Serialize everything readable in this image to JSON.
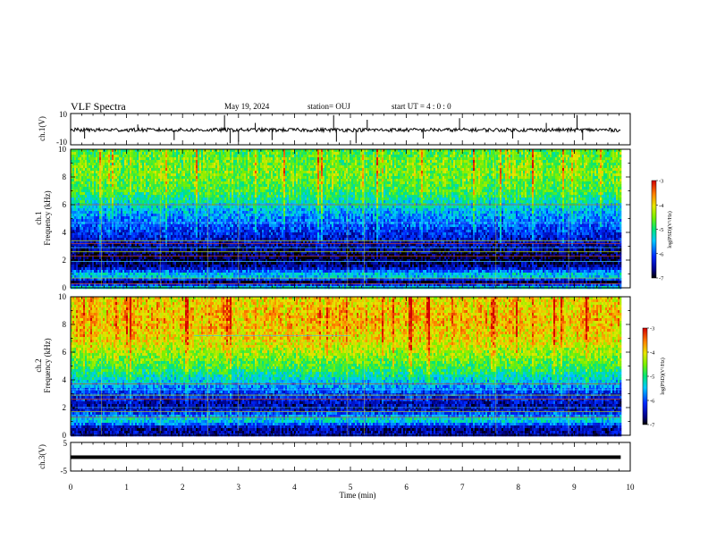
{
  "header": {
    "title": "VLF Spectra",
    "date": "May 19, 2024",
    "station": "station= OUJ",
    "start_ut": "start  UT =   4 : 0  : 0"
  },
  "chart_data": [
    {
      "type": "line",
      "name": "ch1 waveform",
      "ylabel": "ch.1(V)",
      "yticks": [
        "10",
        "-10"
      ],
      "ylim": [
        -10,
        10
      ],
      "xlim": [
        0,
        10
      ],
      "baseline": -0.5,
      "spikes": [
        {
          "x": 0.25,
          "y": -6
        },
        {
          "x": 1.2,
          "y": 3
        },
        {
          "x": 1.85,
          "y": -7
        },
        {
          "x": 2.75,
          "y": 9
        },
        {
          "x": 2.85,
          "y": -9
        },
        {
          "x": 3.0,
          "y": -8
        },
        {
          "x": 3.3,
          "y": 4
        },
        {
          "x": 3.6,
          "y": -7
        },
        {
          "x": 4.7,
          "y": 9
        },
        {
          "x": 4.75,
          "y": -8
        },
        {
          "x": 5.1,
          "y": -9
        },
        {
          "x": 5.3,
          "y": 6
        },
        {
          "x": 6.3,
          "y": -6
        },
        {
          "x": 6.95,
          "y": 7
        },
        {
          "x": 7.9,
          "y": -6
        },
        {
          "x": 8.5,
          "y": 4
        },
        {
          "x": 9.05,
          "y": 9
        },
        {
          "x": 9.15,
          "y": -7
        }
      ]
    },
    {
      "type": "heatmap",
      "name": "ch1 spectrogram",
      "ylabel": "ch.1\nFrequency  (kHz)",
      "ylabel_line1": "ch.1",
      "ylabel_line2": "Frequency  (kHz)",
      "yticks": [
        "0",
        "2",
        "4",
        "6",
        "8",
        "10"
      ],
      "ylim": [
        0,
        10
      ],
      "xlim": [
        0,
        10
      ],
      "data_xmax": 9.83,
      "colorbar": {
        "label": "log(PSD)(V²/Hz)",
        "ticks": [
          "-3",
          "-4",
          "-5",
          "-6",
          "-7"
        ],
        "range": [
          -7,
          -3
        ]
      },
      "profile": [
        {
          "f": 0,
          "v": -4.9
        },
        {
          "f": 0.5,
          "v": -6.8
        },
        {
          "f": 1.0,
          "v": -5.2
        },
        {
          "f": 1.6,
          "v": -6.6
        },
        {
          "f": 2.2,
          "v": -6.9
        },
        {
          "f": 3.0,
          "v": -6.6
        },
        {
          "f": 4.0,
          "v": -6.2
        },
        {
          "f": 5.5,
          "v": -5.6
        },
        {
          "f": 7.0,
          "v": -4.8
        },
        {
          "f": 8.5,
          "v": -4.5
        },
        {
          "f": 10.0,
          "v": -4.7
        }
      ]
    },
    {
      "type": "heatmap",
      "name": "ch2 spectrogram",
      "ylabel_line1": "ch.2",
      "ylabel_line2": "Frequency  (kHz)",
      "yticks": [
        "0",
        "2",
        "4",
        "6",
        "8",
        "10"
      ],
      "ylim": [
        0,
        10
      ],
      "xlim": [
        0,
        10
      ],
      "data_xmax": 9.83,
      "colorbar": {
        "label": "log(PSD)(V²/Hz)",
        "ticks": [
          "-3",
          "-4",
          "-5",
          "-6",
          "-7"
        ],
        "range": [
          -7,
          -3
        ]
      },
      "profile": [
        {
          "f": 0,
          "v": -6.4
        },
        {
          "f": 0.6,
          "v": -6.6
        },
        {
          "f": 1.2,
          "v": -5.2
        },
        {
          "f": 2.0,
          "v": -6.6
        },
        {
          "f": 3.0,
          "v": -6.2
        },
        {
          "f": 4.0,
          "v": -5.4
        },
        {
          "f": 5.0,
          "v": -4.8
        },
        {
          "f": 6.0,
          "v": -4.4
        },
        {
          "f": 7.0,
          "v": -4.0
        },
        {
          "f": 8.5,
          "v": -3.8
        },
        {
          "f": 10.0,
          "v": -4.0
        }
      ]
    },
    {
      "type": "line",
      "name": "ch3 waveform",
      "ylabel": "ch.3(V)",
      "yticks": [
        "5",
        "-5"
      ],
      "ylim": [
        -5,
        5
      ],
      "xlim": [
        0,
        10
      ],
      "baseline": 0
    }
  ],
  "x_axis": {
    "label": "Time  (min)",
    "ticks": [
      "0",
      "1",
      "2",
      "3",
      "4",
      "5",
      "6",
      "7",
      "8",
      "9",
      "10"
    ]
  }
}
